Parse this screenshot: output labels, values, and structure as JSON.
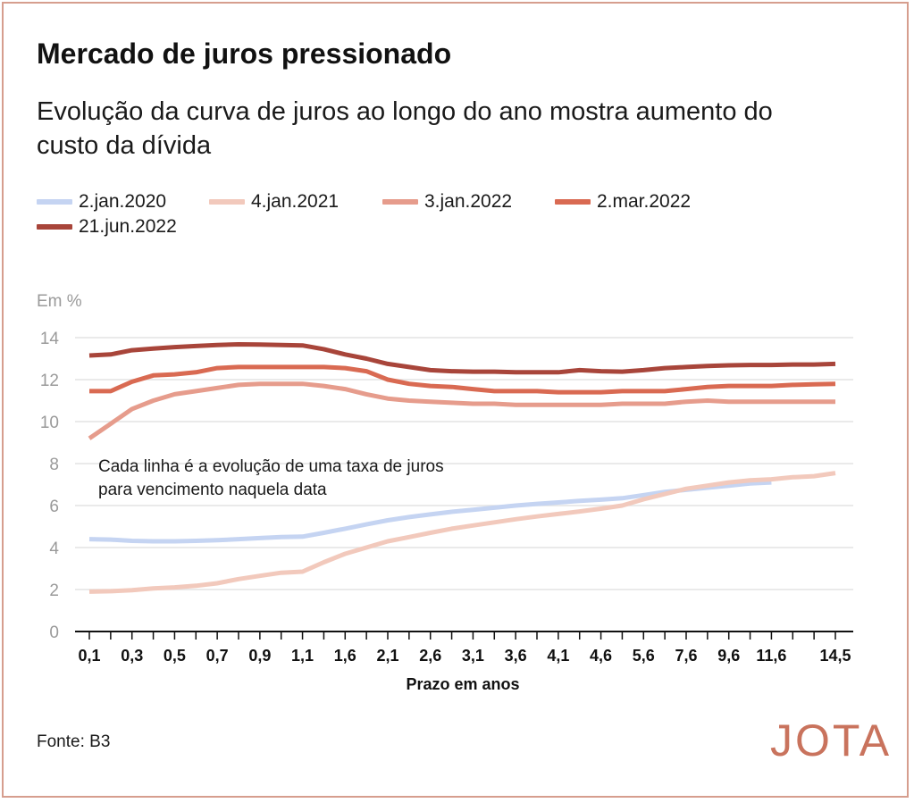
{
  "header": {
    "title": "Mercado de juros pressionado",
    "subtitle": "Evolução da curva de juros ao longo do ano mostra aumento do custo da dívida"
  },
  "footer": {
    "source": "Fonte: B3",
    "logo_text": "JOTA"
  },
  "chart_data": {
    "type": "line",
    "unit_label": "Em %",
    "xlabel": "Prazo em anos",
    "ylabel": "",
    "ylim": [
      0,
      14
    ],
    "yticks": [
      0,
      2,
      4,
      6,
      8,
      10,
      12,
      14
    ],
    "grid": true,
    "legend_position": "top-left",
    "annotation": "Cada linha é a evolução de uma taxa de juros para vencimento naquela data",
    "x": [
      "0,1",
      "0,2",
      "0,3",
      "0,4",
      "0,5",
      "0,6",
      "0,7",
      "0,8",
      "0,9",
      "1,0",
      "1,1",
      "1,3",
      "1,6",
      "1,8",
      "2,1",
      "2,3",
      "2,6",
      "2,8",
      "3,1",
      "3,3",
      "3,6",
      "3,8",
      "4,1",
      "4,3",
      "4,6",
      "5,1",
      "5,6",
      "6,6",
      "7,6",
      "8,6",
      "9,6",
      "10,6",
      "11,6",
      "12,6",
      "13,6",
      "14,5"
    ],
    "x_tick_labels": [
      "0,1",
      "0,3",
      "0,5",
      "0,7",
      "0,9",
      "1,1",
      "1,6",
      "2,1",
      "2,6",
      "3,1",
      "3,6",
      "4,1",
      "4,6",
      "5,6",
      "7,6",
      "9,6",
      "11,6",
      "14,5"
    ],
    "x_tick_indices": [
      0,
      2,
      4,
      6,
      8,
      10,
      12,
      14,
      16,
      18,
      20,
      22,
      24,
      26,
      28,
      30,
      32,
      35
    ],
    "series": [
      {
        "name": "2.jan.2020",
        "color": "#c5d4f2",
        "values": [
          4.4,
          4.38,
          4.32,
          4.3,
          4.3,
          4.32,
          4.35,
          4.4,
          4.45,
          4.5,
          4.52,
          4.7,
          4.9,
          5.1,
          5.3,
          5.45,
          5.58,
          5.7,
          5.8,
          5.9,
          6.0,
          6.08,
          6.15,
          6.22,
          6.28,
          6.35,
          6.5,
          6.65,
          6.75,
          6.85,
          6.95,
          7.05,
          7.1,
          null,
          null,
          null
        ]
      },
      {
        "name": "4.jan.2021",
        "color": "#f2c9bc",
        "values": [
          1.9,
          1.92,
          1.97,
          2.05,
          2.1,
          2.18,
          2.3,
          2.5,
          2.65,
          2.8,
          2.85,
          3.3,
          3.7,
          4.0,
          4.3,
          4.5,
          4.7,
          4.9,
          5.05,
          5.2,
          5.35,
          5.48,
          5.6,
          5.72,
          5.85,
          6.0,
          6.3,
          6.55,
          6.8,
          6.95,
          7.1,
          7.2,
          7.25,
          7.35,
          7.4,
          7.55
        ]
      },
      {
        "name": "3.jan.2022",
        "color": "#e69c8c",
        "values": [
          9.2,
          9.9,
          10.6,
          11.0,
          11.3,
          11.45,
          11.6,
          11.75,
          11.8,
          11.8,
          11.8,
          11.7,
          11.55,
          11.3,
          11.1,
          11.0,
          10.95,
          10.9,
          10.85,
          10.85,
          10.8,
          10.8,
          10.8,
          10.8,
          10.8,
          10.85,
          10.85,
          10.85,
          10.95,
          11.0,
          10.95,
          10.95,
          10.95,
          10.95,
          10.95,
          10.95
        ]
      },
      {
        "name": "2.mar.2022",
        "color": "#d96a52",
        "values": [
          11.45,
          11.45,
          11.9,
          12.2,
          12.25,
          12.35,
          12.55,
          12.6,
          12.6,
          12.6,
          12.6,
          12.6,
          12.55,
          12.4,
          12.0,
          11.8,
          11.7,
          11.65,
          11.55,
          11.45,
          11.45,
          11.45,
          11.4,
          11.4,
          11.4,
          11.45,
          11.45,
          11.45,
          11.55,
          11.65,
          11.7,
          11.7,
          11.7,
          11.75,
          11.78,
          11.8
        ]
      },
      {
        "name": "21.jun.2022",
        "color": "#a8453a",
        "values": [
          13.15,
          13.2,
          13.4,
          13.48,
          13.55,
          13.6,
          13.65,
          13.68,
          13.67,
          13.65,
          13.63,
          13.45,
          13.2,
          13.0,
          12.75,
          12.6,
          12.45,
          12.4,
          12.38,
          12.38,
          12.35,
          12.35,
          12.35,
          12.45,
          12.4,
          12.38,
          12.45,
          12.55,
          12.6,
          12.65,
          12.68,
          12.7,
          12.7,
          12.72,
          12.72,
          12.75
        ]
      }
    ]
  }
}
